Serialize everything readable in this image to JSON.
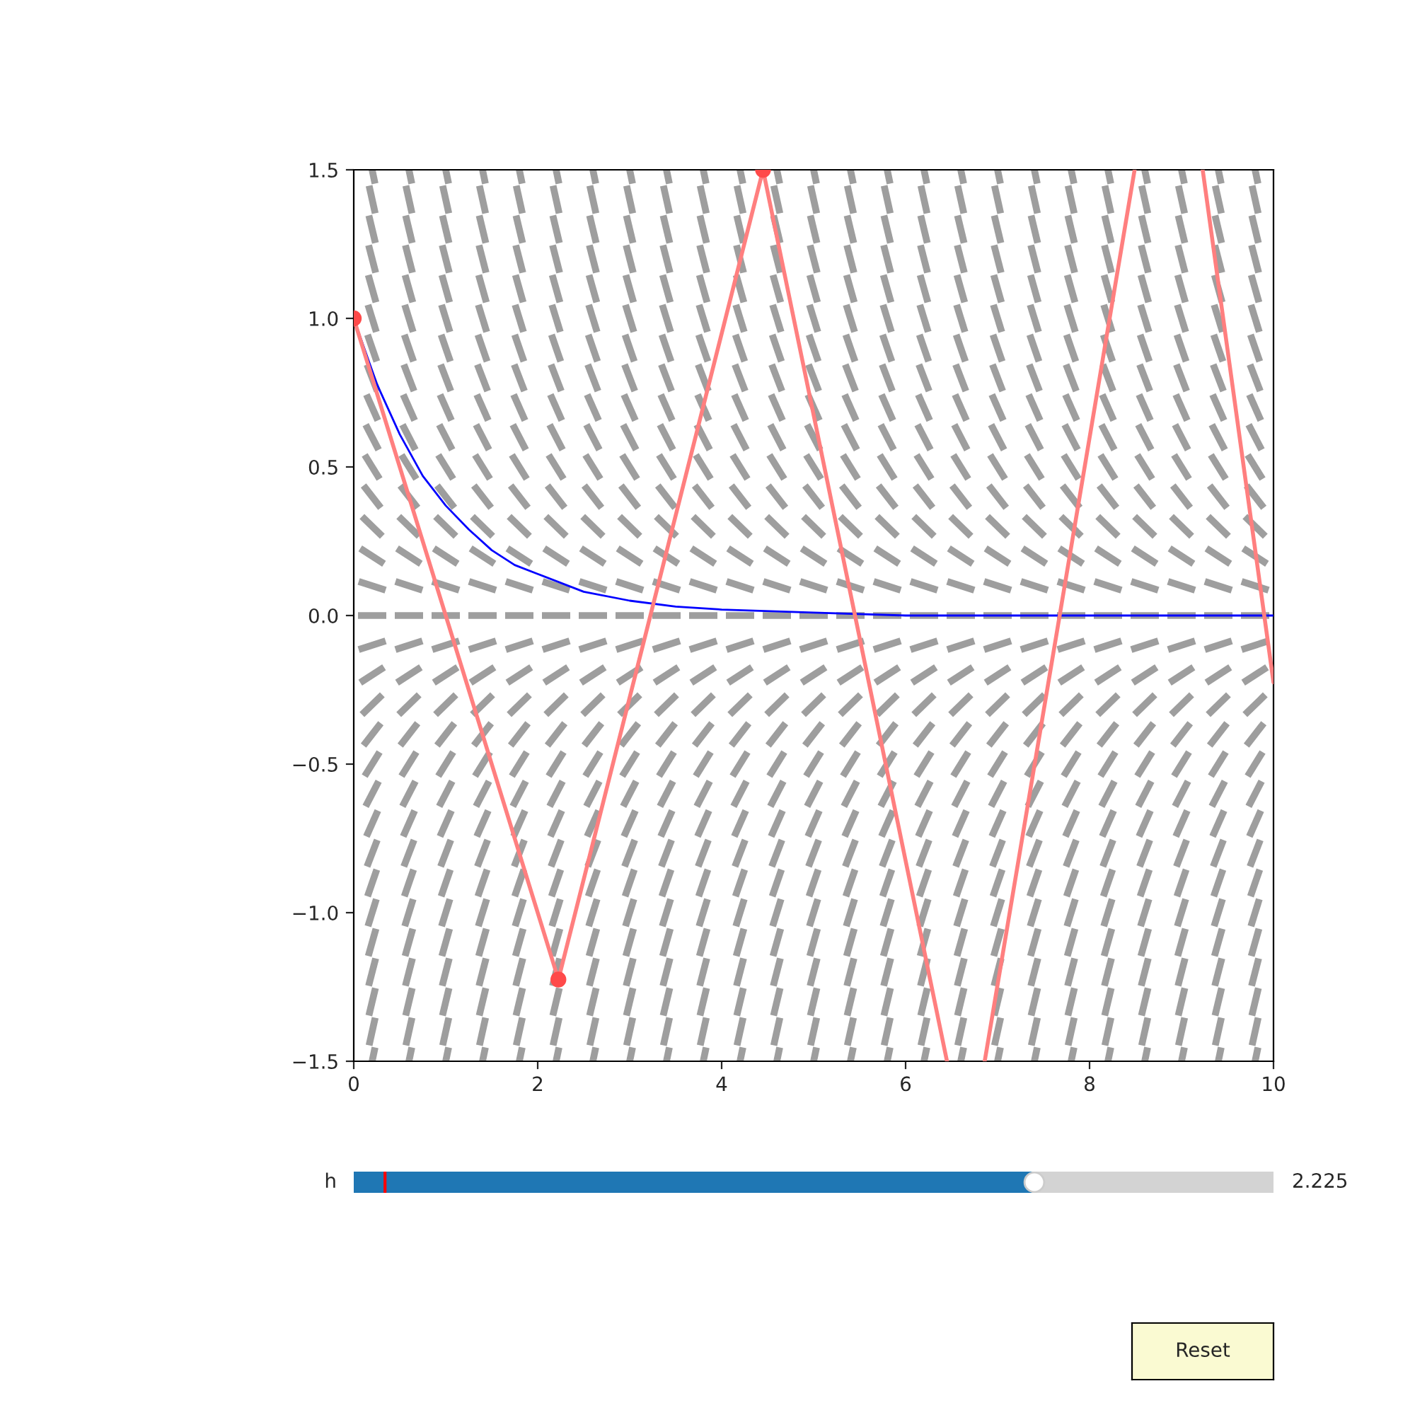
{
  "chart_data": [
    {
      "type": "line",
      "series": [
        {
          "color": "#0000ff",
          "type": "line",
          "x": [
            0,
            0.25,
            0.5,
            0.75,
            1,
            1.25,
            1.5,
            1.75,
            2,
            2.5,
            3,
            3.5,
            4,
            5,
            6,
            10
          ],
          "values": [
            1,
            0.78,
            0.61,
            0.47,
            0.37,
            0.29,
            0.22,
            0.17,
            0.14,
            0.08,
            0.05,
            0.03,
            0.02,
            0.01,
            0,
            0
          ]
        },
        {
          "color": "#ff7f7f",
          "type": "line",
          "x": [
            0,
            2.225,
            4.45,
            6.45,
            6.65,
            6.86,
            8.49,
            8.9,
            9.23,
            10
          ],
          "values": [
            1,
            -1.225,
            1.5,
            -1.5,
            null,
            -1.5,
            1.5,
            null,
            1.5,
            -0.225
          ]
        },
        {
          "color": "#ff4a4a",
          "type": "scatter",
          "marker": "circle",
          "x": [
            0,
            2.225,
            4.45
          ],
          "values": [
            1,
            -1.225,
            1.5
          ]
        }
      ],
      "xlim": [
        0,
        10
      ],
      "xticks": [
        0,
        2,
        4,
        6,
        8,
        10
      ],
      "ylim": [
        -1.5,
        1.5
      ],
      "yticks": [
        {
          "value": -1.5,
          "label": "−1.5"
        },
        {
          "value": -1.0,
          "label": "−1.0"
        },
        {
          "value": -0.5,
          "label": "−0.5"
        },
        {
          "value": 0,
          "label": "0.0"
        },
        {
          "value": 0.5,
          "label": "0.5"
        },
        {
          "value": 1.0,
          "label": "1.0"
        },
        {
          "value": 1.5,
          "label": "1.5"
        }
      ],
      "grid": false
    },
    {
      "type": "other",
      "annotations": [
        "h",
        "2.225",
        "Reset"
      ]
    }
  ]
}
